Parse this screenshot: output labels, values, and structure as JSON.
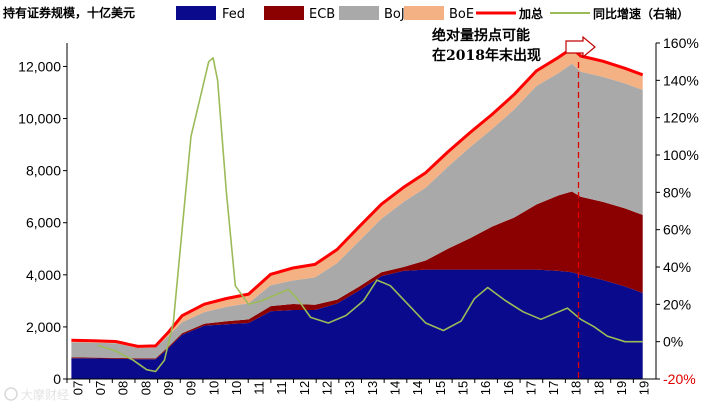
{
  "chart_data": {
    "type": "area",
    "title": "持有证券规模，十亿美元",
    "x_labels": [
      "07",
      "07",
      "08",
      "08",
      "09",
      "09",
      "10",
      "10",
      "11",
      "11",
      "12",
      "12",
      "13",
      "13",
      "14",
      "14",
      "15",
      "15",
      "16",
      "16",
      "17",
      "17",
      "18",
      "18",
      "19",
      "19"
    ],
    "x": [
      2007.0,
      2007.5,
      2008.0,
      2008.5,
      2008.9,
      2009.2,
      2009.5,
      2010.0,
      2010.5,
      2011.0,
      2011.5,
      2012.0,
      2012.5,
      2013.0,
      2013.5,
      2014.0,
      2014.5,
      2015.0,
      2015.5,
      2016.0,
      2016.5,
      2017.0,
      2017.5,
      2018.0,
      2018.3,
      2018.5,
      2019.0,
      2019.5,
      2019.9
    ],
    "series": [
      {
        "name": "Fed",
        "color": "#0A0A8C",
        "values": [
          800,
          790,
          780,
          760,
          760,
          1200,
          1700,
          2050,
          2100,
          2150,
          2600,
          2650,
          2650,
          2900,
          3400,
          3950,
          4150,
          4200,
          4200,
          4200,
          4200,
          4200,
          4200,
          4150,
          4100,
          4000,
          3800,
          3550,
          3300
        ]
      },
      {
        "name": "ECB",
        "color": "#8B0000",
        "values": [
          30,
          30,
          30,
          30,
          30,
          50,
          60,
          70,
          120,
          140,
          200,
          230,
          200,
          150,
          150,
          150,
          150,
          350,
          800,
          1200,
          1650,
          2000,
          2500,
          2900,
          3100,
          3000,
          3000,
          3000,
          3000
        ]
      },
      {
        "name": "BoJ",
        "color": "#A9A9A9",
        "values": [
          580,
          570,
          560,
          400,
          420,
          420,
          420,
          450,
          550,
          620,
          800,
          900,
          1050,
          1400,
          1750,
          2050,
          2500,
          2800,
          3150,
          3500,
          3750,
          4150,
          4550,
          4700,
          4900,
          4800,
          4800,
          4800,
          4800
        ]
      },
      {
        "name": "BoE",
        "color": "#F4B183",
        "values": [
          80,
          80,
          70,
          60,
          60,
          150,
          250,
          300,
          320,
          350,
          420,
          480,
          500,
          520,
          550,
          560,
          560,
          570,
          570,
          560,
          560,
          580,
          580,
          600,
          600,
          600,
          600,
          580,
          580
        ]
      }
    ],
    "total_series": {
      "name": "加总",
      "color": "#FF0000",
      "values": [
        1490,
        1470,
        1440,
        1250,
        1270,
        1820,
        2430,
        2870,
        3090,
        3260,
        4020,
        4260,
        4400,
        4970,
        5850,
        6710,
        7360,
        7920,
        8720,
        9460,
        10160,
        10930,
        11830,
        12350,
        12700,
        12400,
        12200,
        11930,
        11680
      ]
    },
    "yoy_series": {
      "name": "同比增速（右轴）",
      "color": "#9BBB59",
      "x": [
        2007.6,
        2008.0,
        2008.4,
        2008.7,
        2008.9,
        2009.1,
        2009.3,
        2009.5,
        2009.7,
        2009.9,
        2010.1,
        2010.2,
        2010.3,
        2010.5,
        2010.7,
        2011.0,
        2011.3,
        2011.6,
        2011.9,
        2012.1,
        2012.4,
        2012.8,
        2013.2,
        2013.6,
        2013.9,
        2014.2,
        2014.6,
        2015.0,
        2015.4,
        2015.8,
        2016.1,
        2016.4,
        2016.8,
        2017.2,
        2017.6,
        2017.9,
        2018.2,
        2018.5,
        2018.8,
        2019.1,
        2019.5,
        2019.9
      ],
      "values": [
        -2,
        -5,
        -10,
        -15,
        -16,
        -10,
        10,
        60,
        110,
        130,
        150,
        152,
        140,
        80,
        30,
        20,
        22,
        25,
        28,
        23,
        13,
        10,
        14,
        22,
        33,
        30,
        20,
        10,
        6,
        11,
        23,
        29,
        22,
        16,
        12,
        15,
        18,
        12,
        8,
        3,
        0,
        0
      ]
    },
    "ylim_left": [
      0,
      12900
    ],
    "yticks_left": [
      "0",
      "2,000",
      "4,000",
      "6,000",
      "8,000",
      "10,000",
      "12,000"
    ],
    "ylim_right": [
      -20,
      160
    ],
    "yticks_right": [
      "-20%",
      "0%",
      "20%",
      "40%",
      "60%",
      "80%",
      "100%",
      "120%",
      "140%",
      "160%"
    ],
    "legend_position": "top",
    "annotation": {
      "line1": "绝对量拐点可能",
      "line2": "在2018年末出现",
      "x": 2018.45
    }
  },
  "watermark": "大摩财经"
}
